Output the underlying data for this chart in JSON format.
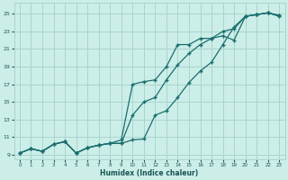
{
  "xlabel": "Humidex (Indice chaleur)",
  "bg_color": "#cceee8",
  "grid_color": "#aad4ce",
  "line_color": "#1a6e6e",
  "xlim": [
    -0.5,
    23.5
  ],
  "ylim": [
    8.5,
    26.2
  ],
  "xticks": [
    0,
    1,
    2,
    3,
    4,
    5,
    6,
    7,
    8,
    9,
    10,
    11,
    12,
    13,
    14,
    15,
    16,
    17,
    18,
    19,
    20,
    21,
    22,
    23
  ],
  "yticks": [
    9,
    11,
    13,
    15,
    17,
    19,
    21,
    23,
    25
  ],
  "line1_x": [
    0,
    1,
    2,
    3,
    4,
    5,
    6,
    7,
    8,
    9,
    10,
    11,
    12,
    13,
    14,
    15,
    16,
    17,
    18,
    19,
    20,
    21,
    22,
    23
  ],
  "line1_y": [
    9.2,
    9.7,
    9.4,
    10.2,
    10.5,
    9.2,
    9.8,
    10.1,
    10.3,
    10.7,
    17.0,
    17.3,
    17.5,
    19.0,
    21.5,
    21.5,
    22.2,
    22.2,
    22.5,
    22.0,
    24.7,
    24.9,
    25.1,
    24.7
  ],
  "line2_x": [
    0,
    1,
    2,
    3,
    4,
    5,
    6,
    7,
    8,
    9,
    10,
    11,
    12,
    13,
    14,
    15,
    16,
    17,
    18,
    19,
    20,
    21,
    22,
    23
  ],
  "line2_y": [
    9.2,
    9.7,
    9.4,
    10.2,
    10.5,
    9.2,
    9.8,
    10.1,
    10.3,
    10.3,
    13.5,
    15.0,
    15.5,
    17.5,
    19.2,
    20.5,
    21.5,
    22.2,
    23.0,
    23.3,
    24.7,
    24.9,
    25.1,
    24.8
  ],
  "line3_x": [
    0,
    1,
    2,
    3,
    4,
    5,
    6,
    7,
    8,
    9,
    10,
    11,
    12,
    13,
    14,
    15,
    16,
    17,
    18,
    19,
    20,
    21,
    22,
    23
  ],
  "line3_y": [
    9.2,
    9.7,
    9.4,
    10.2,
    10.5,
    9.2,
    9.8,
    10.1,
    10.3,
    10.3,
    10.7,
    10.8,
    13.5,
    14.0,
    15.5,
    17.2,
    18.5,
    19.5,
    21.5,
    23.5,
    24.7,
    24.9,
    25.1,
    24.8
  ]
}
